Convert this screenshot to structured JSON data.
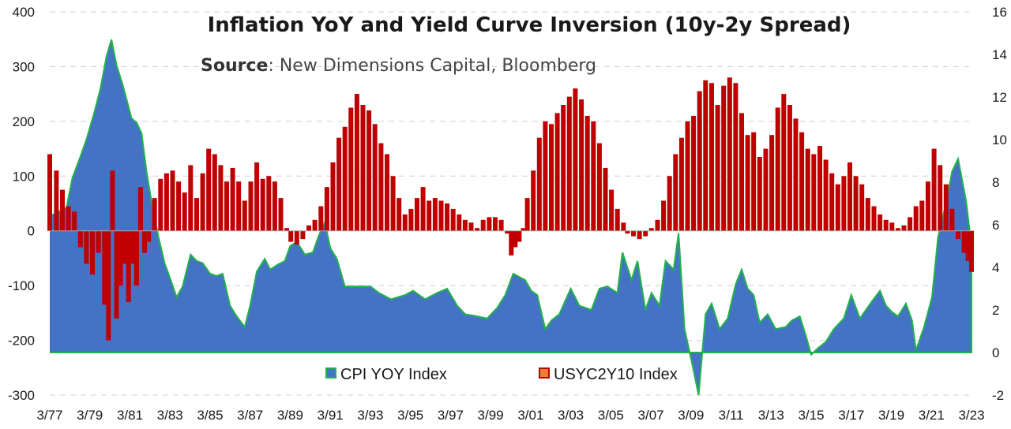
{
  "chart_data": {
    "type": "bar",
    "title": "Inflation YoY and Yield Curve Inversion (10y-2y Spread)",
    "source_label": "Source",
    "source_text": ": New Dimensions Capital, Bloomberg",
    "x_ticks": [
      "3/77",
      "3/79",
      "3/81",
      "3/83",
      "3/85",
      "3/87",
      "3/89",
      "3/91",
      "3/93",
      "3/95",
      "3/97",
      "3/99",
      "3/01",
      "3/03",
      "3/05",
      "3/07",
      "3/09",
      "3/11",
      "3/13",
      "3/15",
      "3/17",
      "3/19",
      "3/21",
      "3/23"
    ],
    "x_range": [
      1977.17,
      2023.17
    ],
    "y_left": {
      "range": [
        -300,
        400
      ],
      "ticks": [
        "-300",
        "-200",
        "-100",
        "0",
        "100",
        "200",
        "300",
        "400"
      ],
      "tick_values": [
        -300,
        -200,
        -100,
        0,
        100,
        200,
        300,
        400
      ]
    },
    "y_right": {
      "range": [
        -2,
        16
      ],
      "ticks": [
        "-2",
        "0",
        "2",
        "4",
        "6",
        "8",
        "10",
        "12",
        "14",
        "16"
      ],
      "tick_values": [
        -2,
        0,
        2,
        4,
        6,
        8,
        10,
        12,
        14,
        16
      ]
    },
    "grid": true,
    "legend_position": "bottom",
    "series": [
      {
        "name": "CPI YOY Index",
        "type": "area",
        "axis": "right",
        "color": "#4472c4",
        "line_color": "#22b24c",
        "points": [
          [
            1977.17,
            6.4
          ],
          [
            1977.6,
            6.6
          ],
          [
            1978.0,
            6.8
          ],
          [
            1978.3,
            8.2
          ],
          [
            1978.7,
            9.2
          ],
          [
            1979.0,
            10.0
          ],
          [
            1979.4,
            11.3
          ],
          [
            1979.7,
            12.4
          ],
          [
            1980.0,
            13.9
          ],
          [
            1980.25,
            14.7
          ],
          [
            1980.5,
            13.5
          ],
          [
            1980.8,
            12.6
          ],
          [
            1981.0,
            11.9
          ],
          [
            1981.25,
            11.0
          ],
          [
            1981.5,
            10.8
          ],
          [
            1981.75,
            10.3
          ],
          [
            1982.0,
            8.5
          ],
          [
            1982.3,
            6.8
          ],
          [
            1982.6,
            5.4
          ],
          [
            1982.9,
            4.2
          ],
          [
            1983.17,
            3.5
          ],
          [
            1983.5,
            2.6
          ],
          [
            1983.8,
            3.1
          ],
          [
            1984.2,
            4.6
          ],
          [
            1984.5,
            4.3
          ],
          [
            1984.8,
            4.2
          ],
          [
            1985.17,
            3.7
          ],
          [
            1985.5,
            3.6
          ],
          [
            1985.8,
            3.7
          ],
          [
            1986.17,
            2.2
          ],
          [
            1986.5,
            1.7
          ],
          [
            1986.9,
            1.2
          ],
          [
            1987.17,
            2.2
          ],
          [
            1987.5,
            3.8
          ],
          [
            1987.9,
            4.4
          ],
          [
            1988.17,
            3.9
          ],
          [
            1988.5,
            4.1
          ],
          [
            1988.9,
            4.3
          ],
          [
            1989.17,
            5.0
          ],
          [
            1989.5,
            5.2
          ],
          [
            1989.9,
            4.6
          ],
          [
            1990.3,
            4.7
          ],
          [
            1990.6,
            5.5
          ],
          [
            1990.9,
            6.1
          ],
          [
            1991.17,
            4.9
          ],
          [
            1991.5,
            4.4
          ],
          [
            1991.9,
            3.1
          ],
          [
            1992.5,
            3.1
          ],
          [
            1993.17,
            3.1
          ],
          [
            1993.6,
            2.8
          ],
          [
            1994.2,
            2.5
          ],
          [
            1994.9,
            2.7
          ],
          [
            1995.3,
            2.9
          ],
          [
            1995.9,
            2.5
          ],
          [
            1996.5,
            2.8
          ],
          [
            1997.0,
            3.0
          ],
          [
            1997.5,
            2.2
          ],
          [
            1997.9,
            1.8
          ],
          [
            1998.5,
            1.7
          ],
          [
            1999.0,
            1.6
          ],
          [
            1999.5,
            2.1
          ],
          [
            1999.9,
            2.7
          ],
          [
            2000.3,
            3.7
          ],
          [
            2000.9,
            3.4
          ],
          [
            2001.2,
            2.9
          ],
          [
            2001.5,
            2.7
          ],
          [
            2001.9,
            1.1
          ],
          [
            2002.2,
            1.5
          ],
          [
            2002.6,
            1.8
          ],
          [
            2003.17,
            3.0
          ],
          [
            2003.6,
            2.2
          ],
          [
            2004.2,
            2.0
          ],
          [
            2004.6,
            3.0
          ],
          [
            2005.0,
            3.1
          ],
          [
            2005.5,
            2.8
          ],
          [
            2005.75,
            4.7
          ],
          [
            2006.2,
            3.4
          ],
          [
            2006.5,
            4.3
          ],
          [
            2006.9,
            2.0
          ],
          [
            2007.2,
            2.8
          ],
          [
            2007.6,
            2.2
          ],
          [
            2007.9,
            4.3
          ],
          [
            2008.3,
            3.9
          ],
          [
            2008.55,
            5.6
          ],
          [
            2008.85,
            1.1
          ],
          [
            2009.2,
            -0.4
          ],
          [
            2009.55,
            -2.0
          ],
          [
            2009.9,
            1.8
          ],
          [
            2010.2,
            2.3
          ],
          [
            2010.6,
            1.1
          ],
          [
            2011.0,
            1.6
          ],
          [
            2011.4,
            3.2
          ],
          [
            2011.7,
            3.9
          ],
          [
            2012.0,
            3.0
          ],
          [
            2012.3,
            2.7
          ],
          [
            2012.6,
            1.4
          ],
          [
            2013.0,
            1.8
          ],
          [
            2013.4,
            1.1
          ],
          [
            2013.9,
            1.2
          ],
          [
            2014.2,
            1.5
          ],
          [
            2014.6,
            1.7
          ],
          [
            2014.9,
            0.8
          ],
          [
            2015.17,
            -0.1
          ],
          [
            2015.5,
            0.2
          ],
          [
            2015.9,
            0.5
          ],
          [
            2016.3,
            1.1
          ],
          [
            2016.8,
            1.6
          ],
          [
            2017.17,
            2.7
          ],
          [
            2017.6,
            1.6
          ],
          [
            2018.2,
            2.4
          ],
          [
            2018.6,
            2.9
          ],
          [
            2018.9,
            2.2
          ],
          [
            2019.2,
            1.9
          ],
          [
            2019.5,
            1.7
          ],
          [
            2019.9,
            2.3
          ],
          [
            2020.2,
            1.5
          ],
          [
            2020.4,
            0.1
          ],
          [
            2020.8,
            1.2
          ],
          [
            2021.2,
            2.6
          ],
          [
            2021.5,
            5.4
          ],
          [
            2021.9,
            7.0
          ],
          [
            2022.2,
            8.5
          ],
          [
            2022.5,
            9.1
          ],
          [
            2022.9,
            7.1
          ],
          [
            2023.17,
            5.0
          ]
        ]
      },
      {
        "name": "USYC2Y10 Index",
        "type": "bar",
        "axis": "left",
        "color": "#c00000",
        "points": [
          [
            1977.17,
            140
          ],
          [
            1977.5,
            110
          ],
          [
            1977.8,
            75
          ],
          [
            1978.1,
            45
          ],
          [
            1978.4,
            35
          ],
          [
            1978.7,
            -30
          ],
          [
            1979.0,
            -60
          ],
          [
            1979.3,
            -80
          ],
          [
            1979.6,
            -40
          ],
          [
            1979.9,
            -135
          ],
          [
            1980.1,
            -200
          ],
          [
            1980.3,
            110
          ],
          [
            1980.5,
            -160
          ],
          [
            1980.7,
            -100
          ],
          [
            1980.9,
            -60
          ],
          [
            1981.1,
            -130
          ],
          [
            1981.3,
            -60
          ],
          [
            1981.5,
            -100
          ],
          [
            1981.7,
            80
          ],
          [
            1981.9,
            -40
          ],
          [
            1982.1,
            -20
          ],
          [
            1982.4,
            60
          ],
          [
            1982.7,
            95
          ],
          [
            1983.0,
            105
          ],
          [
            1983.3,
            110
          ],
          [
            1983.6,
            90
          ],
          [
            1983.9,
            70
          ],
          [
            1984.2,
            120
          ],
          [
            1984.5,
            60
          ],
          [
            1984.8,
            105
          ],
          [
            1985.1,
            150
          ],
          [
            1985.4,
            140
          ],
          [
            1985.7,
            120
          ],
          [
            1986.0,
            90
          ],
          [
            1986.3,
            115
          ],
          [
            1986.6,
            90
          ],
          [
            1986.9,
            55
          ],
          [
            1987.2,
            90
          ],
          [
            1987.5,
            125
          ],
          [
            1987.8,
            95
          ],
          [
            1988.1,
            100
          ],
          [
            1988.4,
            90
          ],
          [
            1988.7,
            60
          ],
          [
            1989.0,
            5
          ],
          [
            1989.2,
            -20
          ],
          [
            1989.5,
            -25
          ],
          [
            1989.8,
            -15
          ],
          [
            1990.1,
            10
          ],
          [
            1990.4,
            20
          ],
          [
            1990.7,
            45
          ],
          [
            1991.0,
            80
          ],
          [
            1991.3,
            125
          ],
          [
            1991.6,
            170
          ],
          [
            1991.9,
            190
          ],
          [
            1992.2,
            225
          ],
          [
            1992.5,
            250
          ],
          [
            1992.8,
            230
          ],
          [
            1993.1,
            220
          ],
          [
            1993.4,
            195
          ],
          [
            1993.7,
            160
          ],
          [
            1994.0,
            140
          ],
          [
            1994.3,
            100
          ],
          [
            1994.6,
            60
          ],
          [
            1994.9,
            30
          ],
          [
            1995.2,
            40
          ],
          [
            1995.5,
            60
          ],
          [
            1995.8,
            80
          ],
          [
            1996.1,
            55
          ],
          [
            1996.4,
            60
          ],
          [
            1996.7,
            55
          ],
          [
            1997.0,
            50
          ],
          [
            1997.3,
            40
          ],
          [
            1997.6,
            30
          ],
          [
            1997.9,
            20
          ],
          [
            1998.2,
            15
          ],
          [
            1998.5,
            5
          ],
          [
            1998.8,
            20
          ],
          [
            1999.1,
            25
          ],
          [
            1999.4,
            25
          ],
          [
            1999.7,
            20
          ],
          [
            2000.0,
            -5
          ],
          [
            2000.2,
            -45
          ],
          [
            2000.4,
            -30
          ],
          [
            2000.6,
            -20
          ],
          [
            2000.8,
            5
          ],
          [
            2001.0,
            60
          ],
          [
            2001.3,
            110
          ],
          [
            2001.6,
            170
          ],
          [
            2001.9,
            200
          ],
          [
            2002.2,
            195
          ],
          [
            2002.5,
            215
          ],
          [
            2002.8,
            230
          ],
          [
            2003.1,
            245
          ],
          [
            2003.4,
            260
          ],
          [
            2003.7,
            240
          ],
          [
            2004.0,
            210
          ],
          [
            2004.3,
            200
          ],
          [
            2004.6,
            160
          ],
          [
            2004.9,
            115
          ],
          [
            2005.2,
            75
          ],
          [
            2005.5,
            40
          ],
          [
            2005.8,
            15
          ],
          [
            2006.0,
            -5
          ],
          [
            2006.3,
            -10
          ],
          [
            2006.6,
            -15
          ],
          [
            2006.9,
            -10
          ],
          [
            2007.2,
            5
          ],
          [
            2007.5,
            20
          ],
          [
            2007.8,
            55
          ],
          [
            2008.1,
            100
          ],
          [
            2008.4,
            140
          ],
          [
            2008.7,
            170
          ],
          [
            2009.0,
            200
          ],
          [
            2009.3,
            210
          ],
          [
            2009.6,
            255
          ],
          [
            2009.9,
            275
          ],
          [
            2010.2,
            270
          ],
          [
            2010.5,
            230
          ],
          [
            2010.8,
            265
          ],
          [
            2011.1,
            280
          ],
          [
            2011.4,
            270
          ],
          [
            2011.7,
            215
          ],
          [
            2012.0,
            175
          ],
          [
            2012.3,
            180
          ],
          [
            2012.6,
            135
          ],
          [
            2012.9,
            150
          ],
          [
            2013.2,
            175
          ],
          [
            2013.5,
            225
          ],
          [
            2013.8,
            250
          ],
          [
            2014.1,
            230
          ],
          [
            2014.4,
            205
          ],
          [
            2014.7,
            180
          ],
          [
            2015.0,
            150
          ],
          [
            2015.3,
            140
          ],
          [
            2015.6,
            155
          ],
          [
            2015.9,
            130
          ],
          [
            2016.2,
            105
          ],
          [
            2016.5,
            85
          ],
          [
            2016.8,
            100
          ],
          [
            2017.1,
            125
          ],
          [
            2017.4,
            100
          ],
          [
            2017.7,
            85
          ],
          [
            2018.0,
            60
          ],
          [
            2018.3,
            45
          ],
          [
            2018.6,
            30
          ],
          [
            2018.9,
            20
          ],
          [
            2019.2,
            15
          ],
          [
            2019.5,
            5
          ],
          [
            2019.8,
            10
          ],
          [
            2020.1,
            25
          ],
          [
            2020.4,
            45
          ],
          [
            2020.7,
            55
          ],
          [
            2021.0,
            90
          ],
          [
            2021.3,
            150
          ],
          [
            2021.6,
            120
          ],
          [
            2021.9,
            85
          ],
          [
            2022.2,
            40
          ],
          [
            2022.5,
            -15
          ],
          [
            2022.8,
            -40
          ],
          [
            2023.0,
            -55
          ],
          [
            2023.17,
            -75
          ]
        ]
      }
    ]
  }
}
